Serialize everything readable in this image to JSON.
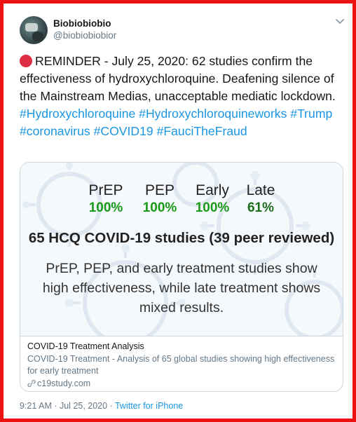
{
  "tweet": {
    "display_name": "Biobiobiobio",
    "handle": "@biobiobiobior",
    "text_main": "REMINDER - July 25, 2020: 62 studies confirm the effectiveness of hydroxychloroquine.  Deafening silence of the Mainstream Medias, unacceptable mediatic lockdown.",
    "hashtags": [
      "#Hydroxychloroquine",
      "#Hydroxychloroquineworks",
      "#Trump",
      "#coronavirus",
      "#COVID19",
      "#FauciTheFraud"
    ],
    "timestamp": "9:21 AM · Jul 25, 2020 · ",
    "source": "Twitter for iPhone"
  },
  "card": {
    "stats": [
      {
        "label": "PrEP",
        "value": "100%"
      },
      {
        "label": "PEP",
        "value": "100%"
      },
      {
        "label": "Early",
        "value": "100%"
      },
      {
        "label": "Late",
        "value": "61%"
      }
    ],
    "headline": "65 HCQ COVID-19 studies (39 peer reviewed)",
    "subline": "PrEP, PEP, and early treatment studies show high effectiveness, while late treatment shows mixed results.",
    "title": "COVID-19 Treatment Analysis",
    "description": "COVID-19 Treatment - Analysis of 65 global studies showing high effectiveness for early treatment",
    "url": "c19study.com"
  },
  "colors": {
    "frame": "#ee1111",
    "hashtag": "#1b95e0",
    "stat_green": "#1a9a1a",
    "stat_dark_green": "#1c6e1c",
    "red_circle": "#dd2e44"
  },
  "icons": {
    "menu": "chevron-down-icon",
    "link": "link-icon",
    "status": "red-circle-emoji"
  }
}
